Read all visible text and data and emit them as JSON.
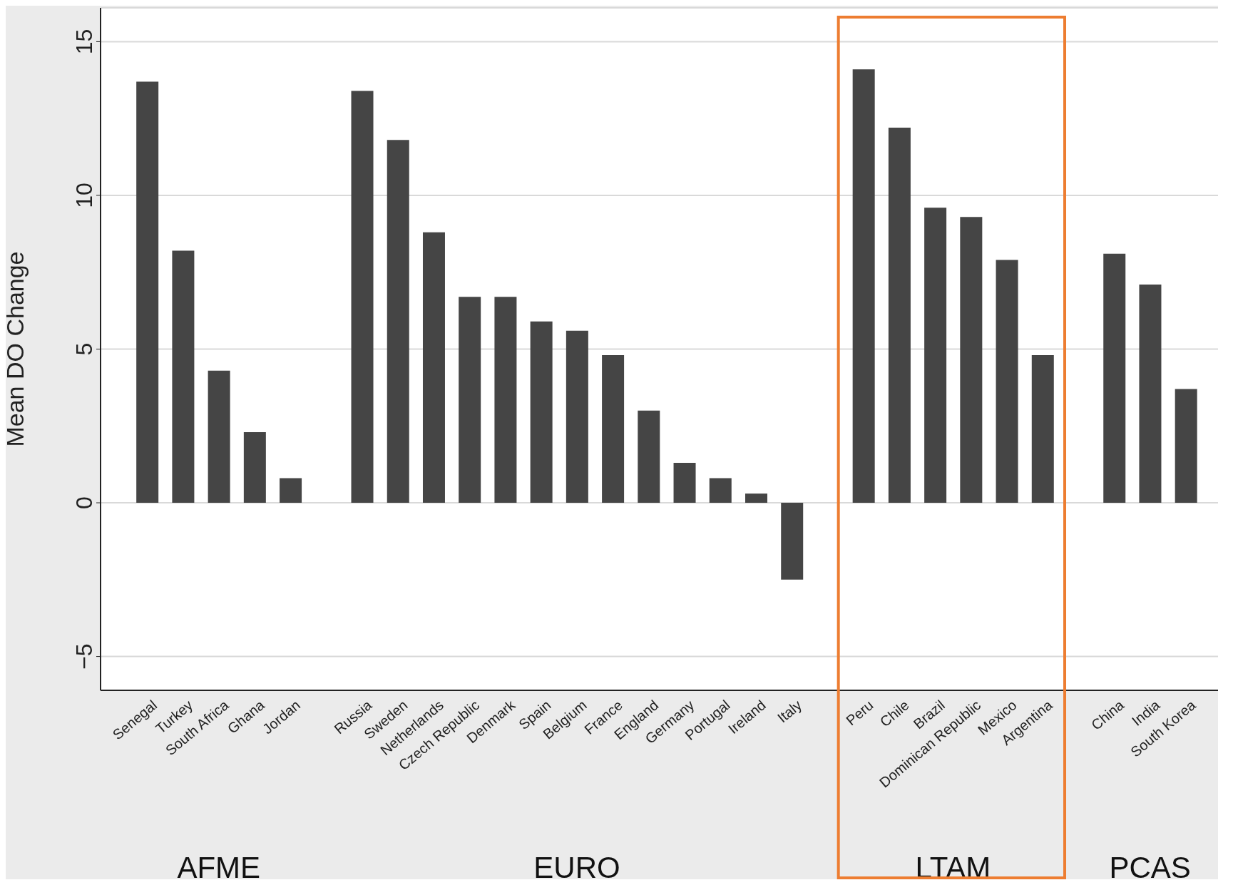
{
  "chart_data": {
    "type": "bar",
    "ylabel": "Mean DO Change",
    "categories": [
      "Senegal",
      "Turkey",
      "South Africa",
      "Ghana",
      "Jordan",
      null,
      "Russia",
      "Sweden",
      "Netherlands",
      "Czech Republic",
      "Denmark",
      "Spain",
      "Belgium",
      "France",
      "England",
      "Germany",
      "Portugal",
      "Ireland",
      "Italy",
      null,
      "Peru",
      "Chile",
      "Brazil",
      "Dominican Republic",
      "Mexico",
      "Argentina",
      null,
      "China",
      "India",
      "South Korea"
    ],
    "values": [
      13.7,
      8.2,
      4.3,
      2.3,
      0.8,
      null,
      13.4,
      11.8,
      8.8,
      6.7,
      6.7,
      5.9,
      5.6,
      4.8,
      3.0,
      1.3,
      0.8,
      0.3,
      -2.5,
      null,
      14.1,
      12.2,
      9.6,
      9.3,
      7.9,
      4.8,
      null,
      8.1,
      7.1,
      3.7
    ],
    "color": "#454545",
    "ylim": [
      -6.1,
      16.1
    ],
    "yticks": [
      -5,
      0,
      5,
      10,
      15
    ],
    "grid": "y",
    "annotations": [
      "AFME",
      "EURO",
      "LTAM",
      "PCAS"
    ]
  }
}
